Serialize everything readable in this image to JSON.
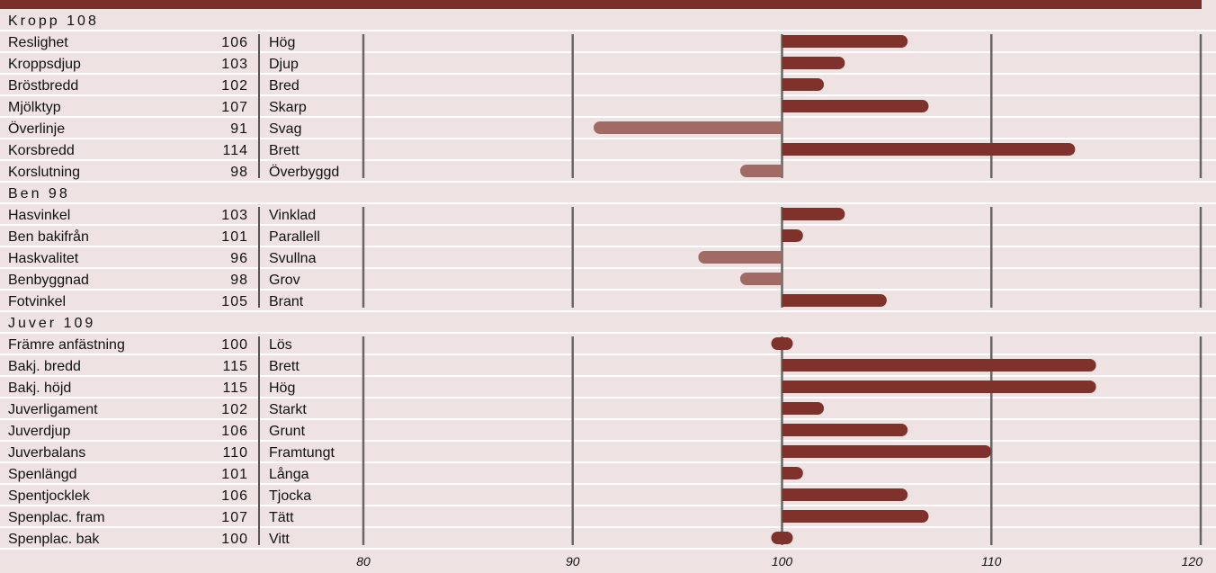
{
  "chart_data": {
    "type": "bar",
    "orientation": "horizontal",
    "baseline": 100,
    "xlim": [
      75,
      120
    ],
    "x_ticks": [
      "80",
      "90",
      "100",
      "110",
      "120"
    ],
    "tick_values": [
      80,
      90,
      100,
      110,
      120
    ],
    "colors": {
      "header_bar": "#7a2f2a",
      "above_baseline": "#7f312c",
      "below_baseline": "#a06b64",
      "background": "#eee2e3",
      "gridline": "#666666",
      "row_divider": "#ffffff"
    },
    "sections": [
      {
        "name": "Kropp",
        "score": "108",
        "rows": [
          {
            "label": "Reslighet",
            "value": 106,
            "desc": "Hög"
          },
          {
            "label": "Kroppsdjup",
            "value": 103,
            "desc": "Djup"
          },
          {
            "label": "Bröstbredd",
            "value": 102,
            "desc": "Bred"
          },
          {
            "label": "Mjölktyp",
            "value": 107,
            "desc": "Skarp"
          },
          {
            "label": "Överlinje",
            "value": 91,
            "desc": "Svag"
          },
          {
            "label": "Korsbredd",
            "value": 114,
            "desc": "Brett"
          },
          {
            "label": "Korslutning",
            "value": 98,
            "desc": "Överbyggd"
          }
        ]
      },
      {
        "name": "Ben",
        "score": "98",
        "rows": [
          {
            "label": "Hasvinkel",
            "value": 103,
            "desc": "Vinklad"
          },
          {
            "label": "Ben bakifrån",
            "value": 101,
            "desc": "Parallell"
          },
          {
            "label": "Haskvalitet",
            "value": 96,
            "desc": "Svullna"
          },
          {
            "label": "Benbyggnad",
            "value": 98,
            "desc": "Grov"
          },
          {
            "label": "Fotvinkel",
            "value": 105,
            "desc": "Brant"
          }
        ]
      },
      {
        "name": "Juver",
        "score": "109",
        "rows": [
          {
            "label": "Främre anfästning",
            "value": 100,
            "desc": "Lös"
          },
          {
            "label": "Bakj. bredd",
            "value": 115,
            "desc": "Brett"
          },
          {
            "label": "Bakj. höjd",
            "value": 115,
            "desc": "Hög"
          },
          {
            "label": "Juverligament",
            "value": 102,
            "desc": "Starkt"
          },
          {
            "label": "Juverdjup",
            "value": 106,
            "desc": "Grunt"
          },
          {
            "label": "Juverbalans",
            "value": 110,
            "desc": "Framtungt"
          },
          {
            "label": "Spenlängd",
            "value": 101,
            "desc": "Långa"
          },
          {
            "label": "Spentjocklek",
            "value": 106,
            "desc": "Tjocka"
          },
          {
            "label": "Spenplac. fram",
            "value": 107,
            "desc": "Tätt"
          },
          {
            "label": "Spenplac. bak",
            "value": 100,
            "desc": "Vitt"
          }
        ]
      }
    ]
  }
}
